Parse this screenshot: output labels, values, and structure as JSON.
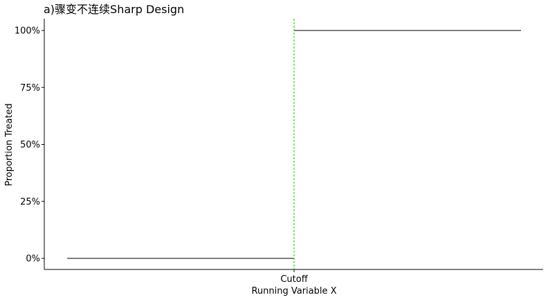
{
  "chart_data": {
    "type": "line",
    "title": "a)骤变不连续Sharp Design",
    "xlabel": "Running Variable X",
    "ylabel": "Proportion Treated",
    "x_tick_labels": [
      "Cutoff"
    ],
    "y_tick_labels": [
      "0%",
      "25%",
      "50%",
      "75%",
      "100%"
    ],
    "y_ticks": [
      0,
      0.25,
      0.5,
      0.75,
      1.0
    ],
    "ylim": [
      0,
      1
    ],
    "cutoff": {
      "x": 0,
      "label": "Cutoff",
      "line_color": "#00cc00",
      "line_style": "dashed"
    },
    "xlim": [
      -1,
      1
    ],
    "series": [
      {
        "segments": [
          {
            "x": [
              -1,
              0
            ],
            "y": [
              0,
              0
            ]
          },
          {
            "x": [
              0,
              1
            ],
            "y": [
              1,
              1
            ]
          }
        ],
        "color": "#000000"
      }
    ],
    "grid": false,
    "legend": "none"
  }
}
